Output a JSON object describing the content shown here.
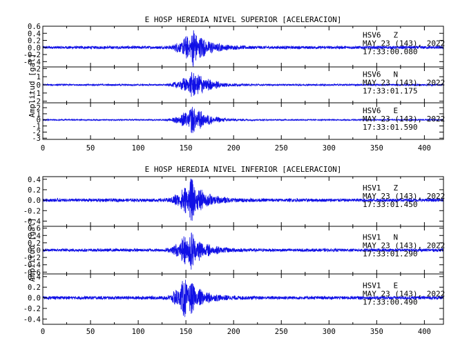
{
  "chart_data": [
    {
      "type": "line",
      "title": "E HOSP HEREDIA NIVEL SUPERIOR [ACELERACION]",
      "ylabel": "Amplitud [gal]",
      "xlim": [
        0,
        420
      ],
      "xticks": [
        "0",
        "50",
        "100",
        "150",
        "200",
        "250",
        "300",
        "350",
        "400"
      ],
      "color": "#1010e6",
      "panels": [
        {
          "station": "HSV6",
          "component": "Z",
          "date": "MAY 23 (143), 2022",
          "time": "17:33:00.080",
          "ylim": [
            -0.55,
            0.6
          ],
          "yticks": [
            "0.6",
            "0.4",
            "0.2",
            "0.0",
            "-0.2",
            "-0.4"
          ],
          "noise": 0.04,
          "peak_amplitude": 0.55,
          "onset": 127,
          "peak_time": 158
        },
        {
          "station": "HSV6",
          "component": "N",
          "date": "MAY 23 (143), 2022",
          "time": "17:33:01.175",
          "ylim": [
            -2.2,
            2.2
          ],
          "yticks": [
            "2",
            "1",
            "0",
            "-1",
            "-2"
          ],
          "noise": 0.1,
          "peak_amplitude": 1.9,
          "onset": 125,
          "peak_time": 160
        },
        {
          "station": "HSV6",
          "component": "E",
          "date": "MAY 23 (143), 2022",
          "time": "17:33:01.590",
          "ylim": [
            -3.2,
            2.8
          ],
          "yticks": [
            "2",
            "1",
            "0",
            "-1",
            "-2",
            "-3"
          ],
          "noise": 0.1,
          "peak_amplitude": 2.5,
          "onset": 125,
          "peak_time": 158
        }
      ]
    },
    {
      "type": "line",
      "title": "E HOSP HEREDIA NIVEL INFERIOR [ACELERACION]",
      "ylabel": "Amplitud [gal]",
      "xlim": [
        0,
        420
      ],
      "xticks": [
        "0",
        "50",
        "100",
        "150",
        "200",
        "250",
        "300",
        "350",
        "400"
      ],
      "color": "#1010e6",
      "panels": [
        {
          "station": "HSV1",
          "component": "Z",
          "date": "MAY 23 (143), 2022",
          "time": "17:33:01.450",
          "ylim": [
            -0.5,
            0.45
          ],
          "yticks": [
            "0.4",
            "0.2",
            "0.0",
            "-0.2",
            "-0.4"
          ],
          "noise": 0.03,
          "peak_amplitude": 0.42,
          "onset": 125,
          "peak_time": 155
        },
        {
          "station": "HSV1",
          "component": "N",
          "date": "MAY 23 (143), 2022",
          "time": "17:33:01.290",
          "ylim": [
            -0.65,
            0.65
          ],
          "yticks": [
            "0.6",
            "0.4",
            "0.2",
            "0.0",
            "-0.2",
            "-0.4",
            "-0.6"
          ],
          "noise": 0.04,
          "peak_amplitude": 0.58,
          "onset": 125,
          "peak_time": 154
        },
        {
          "station": "HSV1",
          "component": "E",
          "date": "MAY 23 (143), 2022",
          "time": "17:33:00.490",
          "ylim": [
            -0.5,
            0.45
          ],
          "yticks": [
            "0.4",
            "0.2",
            "0.0",
            "-0.2",
            "-0.4"
          ],
          "noise": 0.03,
          "peak_amplitude": 0.42,
          "onset": 125,
          "peak_time": 150
        }
      ]
    }
  ]
}
